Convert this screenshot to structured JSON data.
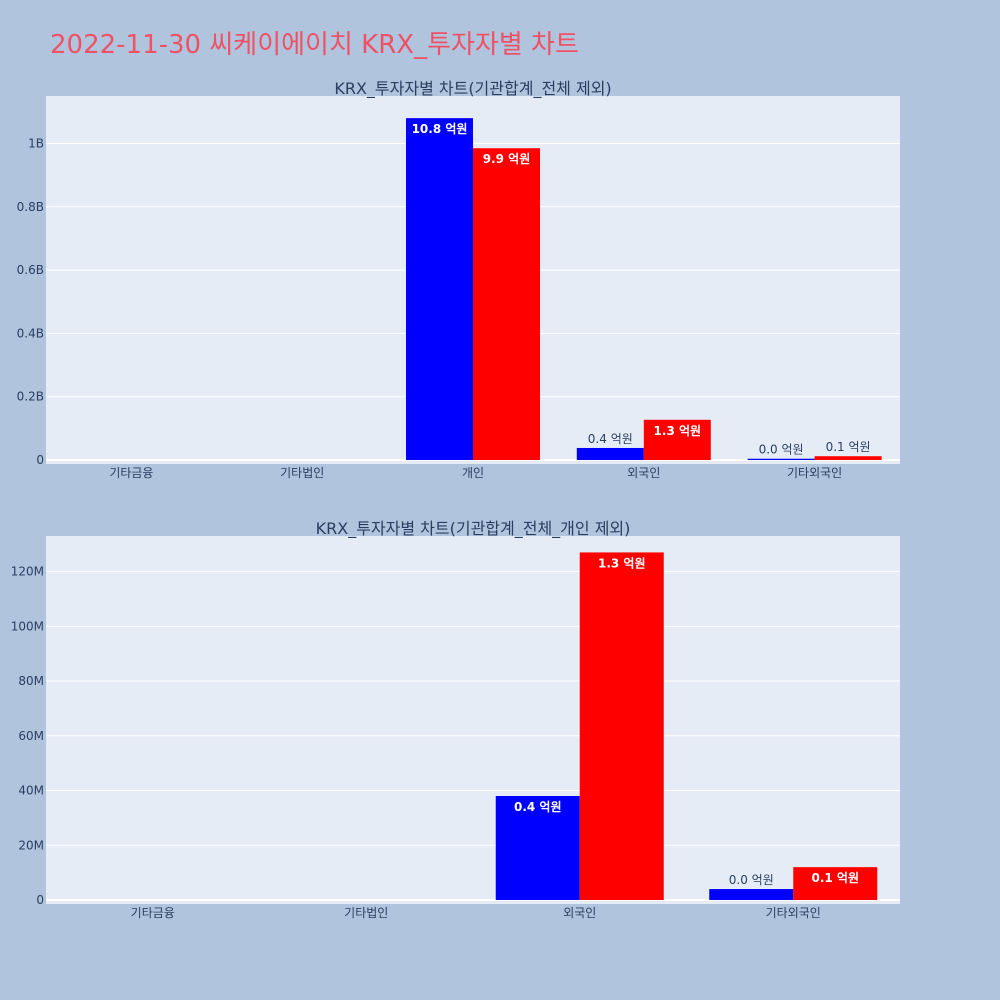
{
  "page": {
    "title": "2022-11-30 씨케이에이치 KRX_투자자별 차트"
  },
  "colors": {
    "background": "#b0c4de",
    "plot_bg": "#e5ecf6",
    "title": "#ef5165",
    "series_a": "#0000ff",
    "series_b": "#ff0000",
    "text": "#2a3f5f"
  },
  "chart_data": [
    {
      "type": "bar",
      "title": "KRX_투자자별 차트(기관합계_전체 제외)",
      "categories": [
        "기타금융",
        "기타법인",
        "개인",
        "외국인",
        "기타외국인"
      ],
      "ylim": [
        0,
        1150000000
      ],
      "yticks": [
        {
          "value": 0,
          "label": "0"
        },
        {
          "value": 200000000,
          "label": "0.2B"
        },
        {
          "value": 400000000,
          "label": "0.4B"
        },
        {
          "value": 600000000,
          "label": "0.6B"
        },
        {
          "value": 800000000,
          "label": "0.8B"
        },
        {
          "value": 1000000000,
          "label": "1B"
        }
      ],
      "series": [
        {
          "name": "blue",
          "color": "#0000ff",
          "values": [
            0,
            0,
            1080000000,
            38000000,
            4000000
          ],
          "labels": [
            "",
            "",
            "10.8 억원",
            "0.4 억원",
            "0.0 억원"
          ]
        },
        {
          "name": "red",
          "color": "#ff0000",
          "values": [
            0,
            0,
            985000000,
            127000000,
            12000000
          ],
          "labels": [
            "",
            "",
            "9.9 억원",
            "1.3 억원",
            "0.1 억원"
          ]
        }
      ]
    },
    {
      "type": "bar",
      "title": "KRX_투자자별 차트(기관합계_전체_개인 제외)",
      "categories": [
        "기타금융",
        "기타법인",
        "외국인",
        "기타외국인"
      ],
      "ylim": [
        0,
        133000000
      ],
      "yticks": [
        {
          "value": 0,
          "label": "0"
        },
        {
          "value": 20000000,
          "label": "20M"
        },
        {
          "value": 40000000,
          "label": "40M"
        },
        {
          "value": 60000000,
          "label": "60M"
        },
        {
          "value": 80000000,
          "label": "80M"
        },
        {
          "value": 100000000,
          "label": "100M"
        },
        {
          "value": 120000000,
          "label": "120M"
        }
      ],
      "series": [
        {
          "name": "blue",
          "color": "#0000ff",
          "values": [
            0,
            0,
            38000000,
            4000000
          ],
          "labels": [
            "",
            "",
            "0.4 억원",
            "0.0 억원"
          ]
        },
        {
          "name": "red",
          "color": "#ff0000",
          "values": [
            0,
            0,
            127000000,
            12000000
          ],
          "labels": [
            "",
            "",
            "1.3 억원",
            "0.1 억원"
          ]
        }
      ]
    }
  ]
}
